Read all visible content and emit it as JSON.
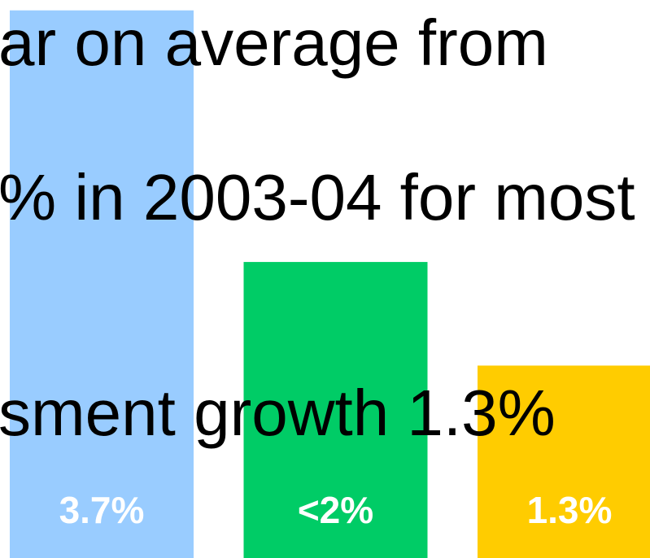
{
  "chart_data": {
    "type": "bar",
    "annotations": [
      "ar on average from",
      "% in 2003-04 for most",
      "sment growth 1.3%"
    ],
    "categories": [
      null,
      null,
      null
    ],
    "values": [
      3.7,
      2,
      1.3
    ],
    "value_labels": [
      "3.7%",
      "<2%",
      "1.3%"
    ],
    "colors": [
      "#99ccff",
      "#00cc66",
      "#ffcc00"
    ],
    "ylim": [
      0,
      3.77
    ]
  }
}
